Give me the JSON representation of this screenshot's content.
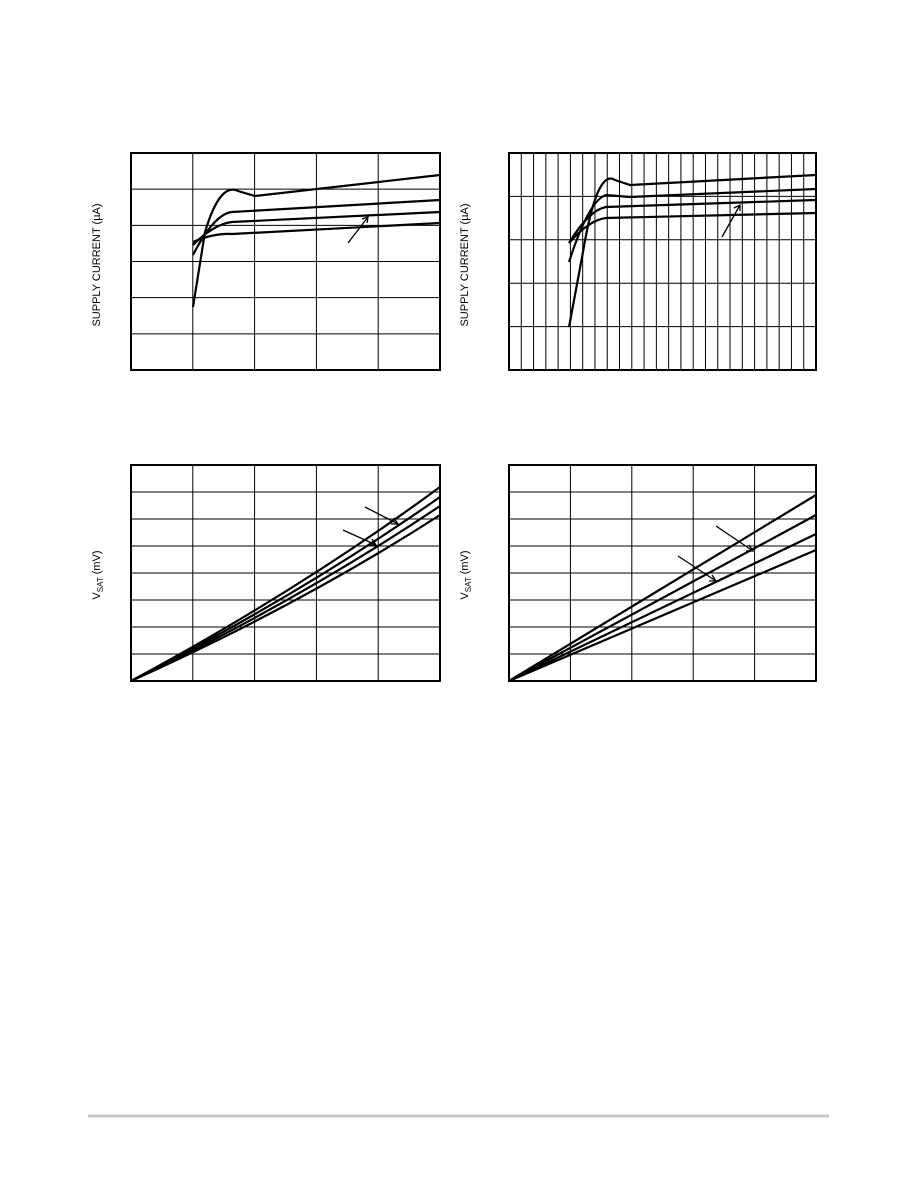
{
  "charts": [
    {
      "y_label": "SUPPLY CURRENT (µA)"
    },
    {
      "y_label": "SUPPLY CURRENT (µA)"
    },
    {
      "y_label": {
        "main": "V",
        "sub": "SAT",
        "unit": "(mV)"
      }
    },
    {
      "y_label": {
        "main": "V",
        "sub": "SAT",
        "unit": "(mV)"
      }
    }
  ]
}
